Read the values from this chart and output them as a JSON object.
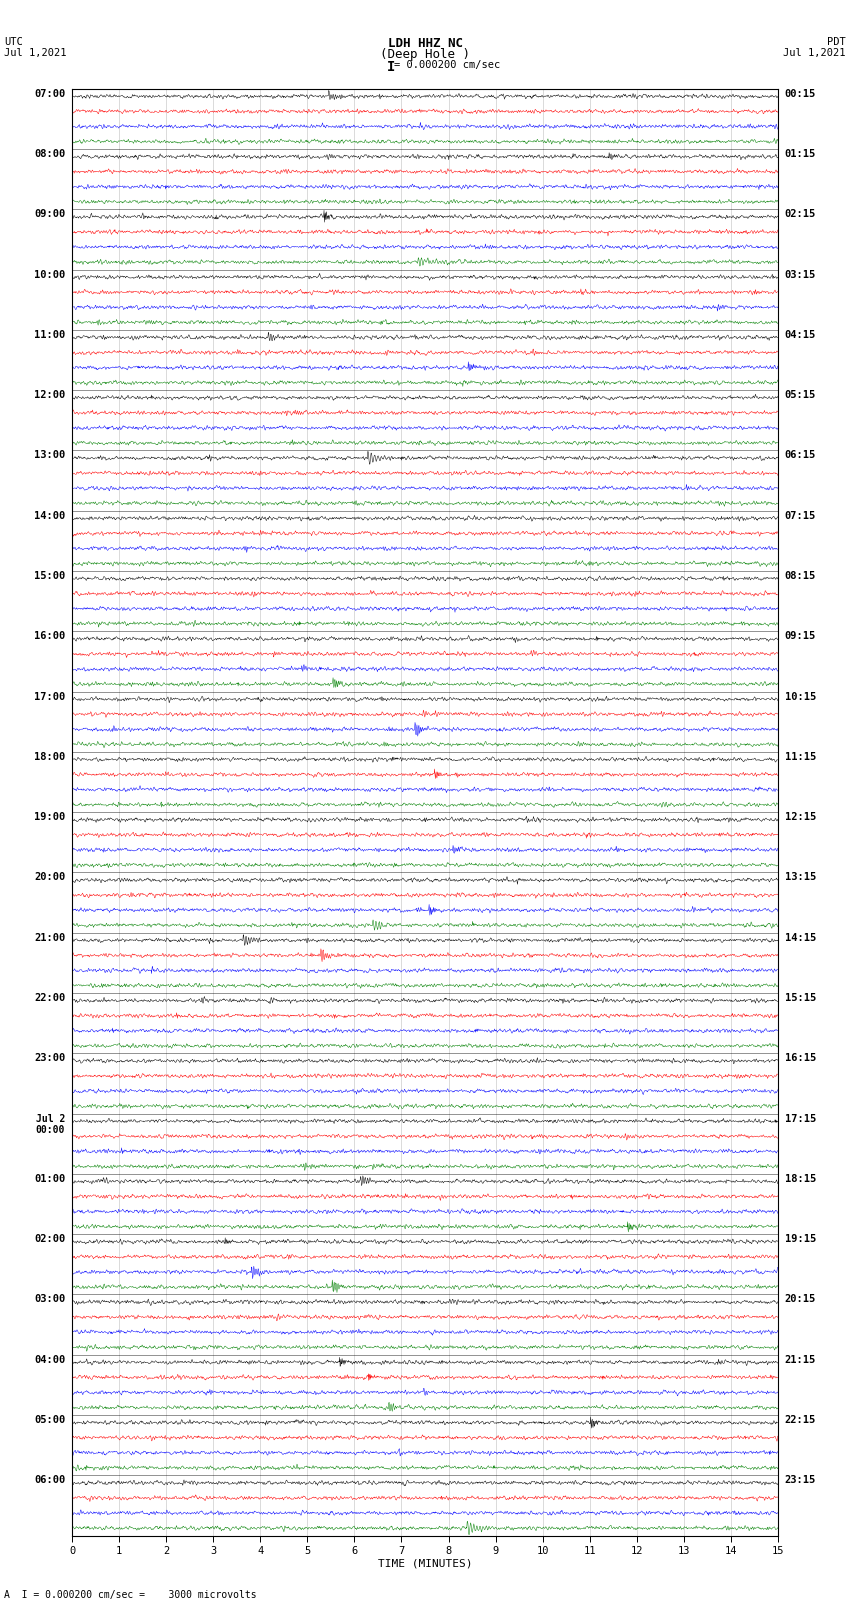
{
  "title_line1": "LDH HHZ NC",
  "title_line2": "(Deep Hole )",
  "scale_label": "= 0.000200 cm/sec",
  "scale_bar": "I",
  "left_label_top": "UTC",
  "left_label_date": "Jul 1,2021",
  "right_label_top": "PDT",
  "right_label_date": "Jul 1,2021",
  "bottom_label": "TIME (MINUTES)",
  "bottom_note": "A  I = 0.000200 cm/sec =    3000 microvolts",
  "utc_labels": [
    "07:00",
    "08:00",
    "09:00",
    "10:00",
    "11:00",
    "12:00",
    "13:00",
    "14:00",
    "15:00",
    "16:00",
    "17:00",
    "18:00",
    "19:00",
    "20:00",
    "21:00",
    "22:00",
    "23:00",
    "Jul 2\n00:00",
    "01:00",
    "02:00",
    "03:00",
    "04:00",
    "05:00",
    "06:00"
  ],
  "pdt_labels": [
    "00:15",
    "01:15",
    "02:15",
    "03:15",
    "04:15",
    "05:15",
    "06:15",
    "07:15",
    "08:15",
    "09:15",
    "10:15",
    "11:15",
    "12:15",
    "13:15",
    "14:15",
    "15:15",
    "16:15",
    "17:15",
    "18:15",
    "19:15",
    "20:15",
    "21:15",
    "22:15",
    "23:15"
  ],
  "n_hours": 24,
  "n_traces_per_hour": 4,
  "colors": [
    "black",
    "red",
    "blue",
    "green"
  ],
  "amplitude": 0.38,
  "noise_amplitude": 0.1,
  "n_points": 1800,
  "x_min": 0,
  "x_max": 15,
  "x_ticks": [
    0,
    1,
    2,
    3,
    4,
    5,
    6,
    7,
    8,
    9,
    10,
    11,
    12,
    13,
    14,
    15
  ],
  "background_color": "white",
  "fig_width": 8.5,
  "fig_height": 16.13,
  "vertical_lines_x": [
    0,
    1,
    2,
    3,
    4,
    5,
    6,
    7,
    8,
    9,
    10,
    11,
    12,
    13,
    14,
    15
  ]
}
